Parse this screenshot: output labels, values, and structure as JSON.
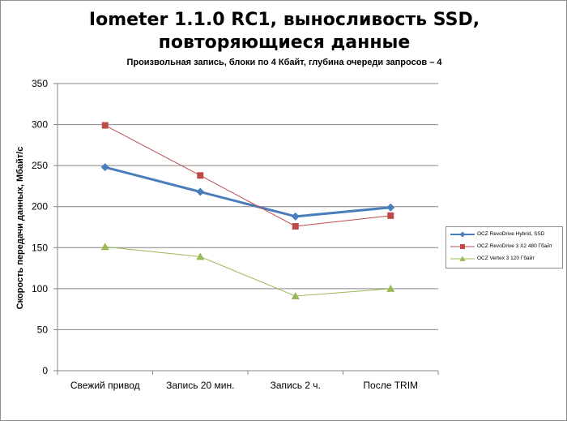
{
  "colors": {
    "series1": "#4a7ebb",
    "series2": "#be4b48",
    "series3": "#98b954",
    "grid": "#868686",
    "axis": "#868686"
  },
  "chart_data": {
    "type": "line",
    "title_line1": "Iometer 1.1.0 RC1, выносливость SSD,",
    "title_line2": "повторяющиеся данные",
    "subtitle": "Произвольная  запись, блоки по 4 Кбайт, глубина очереди запросов – 4",
    "xlabel": "",
    "ylabel": "Скорость  передачи данных, Мбайт/с",
    "categories": [
      "Свежий  привод",
      "Запись 20 мин.",
      "Запись 2 ч.",
      "После TRIM"
    ],
    "ylim": [
      0,
      350
    ],
    "yticks": [
      0,
      50,
      100,
      150,
      200,
      250,
      300,
      350
    ],
    "grid": true,
    "legend_position": "right",
    "series": [
      {
        "name": "OCZ RevoDrive Hybrid, SSD",
        "marker": "diamond",
        "values": [
          248,
          218,
          188,
          199
        ]
      },
      {
        "name": "OCZ RevoDrive 3 X2 480 Гбайт",
        "marker": "square",
        "values": [
          299,
          238,
          176,
          189
        ]
      },
      {
        "name": "OCZ Vertex 3 120 Гбайт",
        "marker": "triangle",
        "values": [
          151,
          139,
          91,
          100
        ]
      }
    ]
  }
}
